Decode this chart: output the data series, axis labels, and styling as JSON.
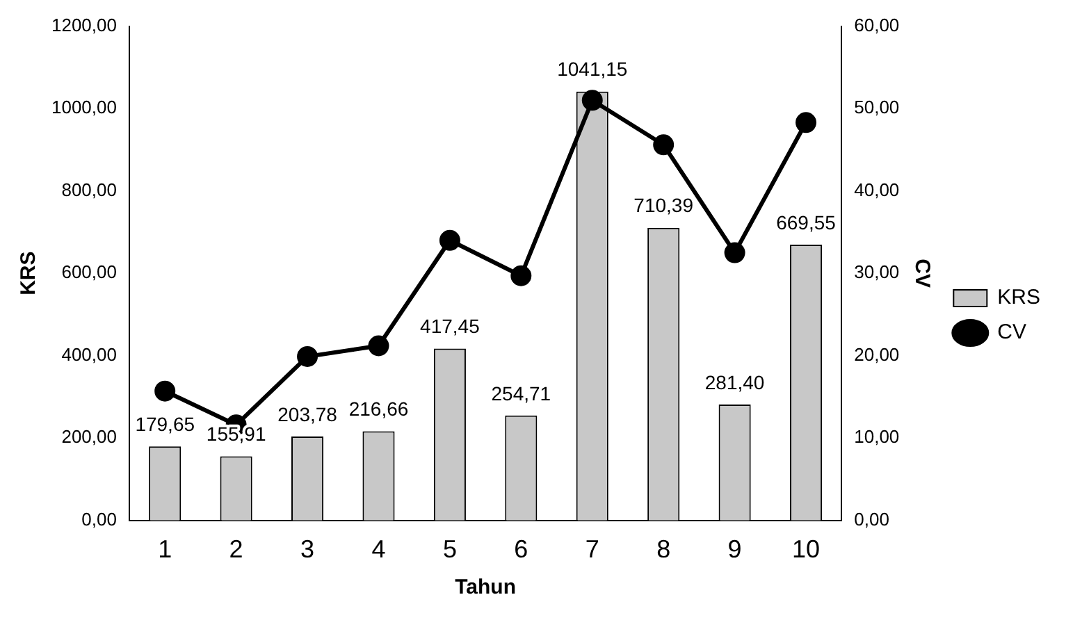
{
  "chart_data": {
    "type": "bar",
    "xlabel": "Tahun",
    "ylabel": "KRS",
    "y2label": "CV",
    "categories": [
      "1",
      "2",
      "3",
      "4",
      "5",
      "6",
      "7",
      "8",
      "9",
      "10"
    ],
    "series": [
      {
        "name": "KRS",
        "color": "#c8c8c8",
        "values": [
          179.65,
          155.91,
          203.78,
          216.66,
          417.45,
          254.71,
          1041.15,
          710.39,
          281.4,
          669.55
        ],
        "value_labels": [
          "179,65",
          "155,91",
          "203,78",
          "216,66",
          "417,45",
          "254,71",
          "1041,15",
          "710,39",
          "281,40",
          "669,55"
        ]
      },
      {
        "name": "CV",
        "type": "line",
        "axis": "y2",
        "color": "#000000",
        "marker": "circle",
        "values": [
          15.7,
          11.6,
          19.9,
          21.2,
          34.0,
          29.7,
          51.0,
          45.6,
          32.5,
          48.3
        ]
      }
    ],
    "ylim": [
      0,
      1200
    ],
    "yticks": [
      {
        "value": 0,
        "label": "0,00"
      },
      {
        "value": 200,
        "label": "200,00"
      },
      {
        "value": 400,
        "label": "400,00"
      },
      {
        "value": 600,
        "label": "600,00"
      },
      {
        "value": 800,
        "label": "800,00"
      },
      {
        "value": 1000,
        "label": "1000,00"
      },
      {
        "value": 1200,
        "label": "1200,00"
      }
    ],
    "y2lim": [
      0,
      60
    ],
    "y2ticks": [
      {
        "value": 0,
        "label": "0,00"
      },
      {
        "value": 10,
        "label": "10,00"
      },
      {
        "value": 20,
        "label": "20,00"
      },
      {
        "value": 30,
        "label": "30,00"
      },
      {
        "value": 40,
        "label": "40,00"
      },
      {
        "value": 50,
        "label": "50,00"
      },
      {
        "value": 60,
        "label": "60,00"
      }
    ],
    "grid": false,
    "legend": "right"
  }
}
